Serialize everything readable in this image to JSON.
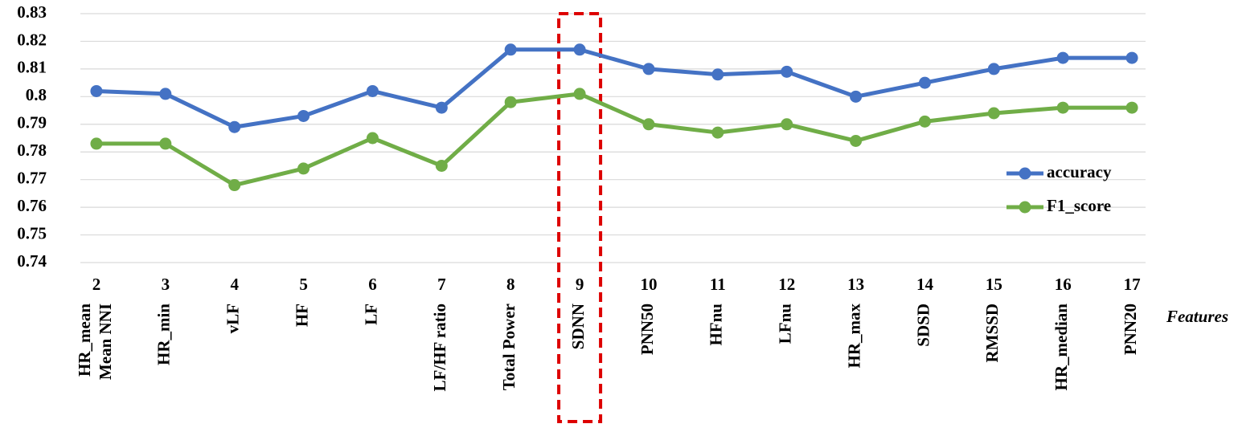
{
  "chart_data": {
    "type": "line",
    "categories": [
      "2",
      "3",
      "4",
      "5",
      "6",
      "7",
      "8",
      "9",
      "10",
      "11",
      "12",
      "13",
      "14",
      "15",
      "16",
      "17"
    ],
    "feature_labels": [
      [
        "HR_mean",
        "Mean NNI"
      ],
      [
        "HR_min"
      ],
      [
        "vLF"
      ],
      [
        "HF"
      ],
      [
        "LF"
      ],
      [
        "LF/HF ratio"
      ],
      [
        "Total Power"
      ],
      [
        "SDNN"
      ],
      [
        "PNN50"
      ],
      [
        "HFnu"
      ],
      [
        "LFnu"
      ],
      [
        "HR_max"
      ],
      [
        "SDSD"
      ],
      [
        "RMSSD"
      ],
      [
        "HR_median"
      ],
      [
        "PNN20"
      ]
    ],
    "x_label": "Features",
    "series": [
      {
        "name": "accuracy",
        "color": "#4472c4",
        "values": [
          0.802,
          0.801,
          0.789,
          0.793,
          0.802,
          0.796,
          0.817,
          0.817,
          0.81,
          0.808,
          0.809,
          0.8,
          0.805,
          0.81,
          0.814,
          0.814
        ]
      },
      {
        "name": "F1_score",
        "color": "#70ad47",
        "values": [
          0.783,
          0.783,
          0.768,
          0.774,
          0.785,
          0.775,
          0.798,
          0.801,
          0.79,
          0.787,
          0.79,
          0.784,
          0.791,
          0.794,
          0.796,
          0.796
        ]
      }
    ],
    "ylim": [
      0.74,
      0.83
    ],
    "yticks": [
      0.74,
      0.75,
      0.76,
      0.77,
      0.78,
      0.79,
      0.8,
      0.81,
      0.82,
      0.83
    ],
    "grid": true,
    "legend": "right",
    "highlight": "9"
  }
}
